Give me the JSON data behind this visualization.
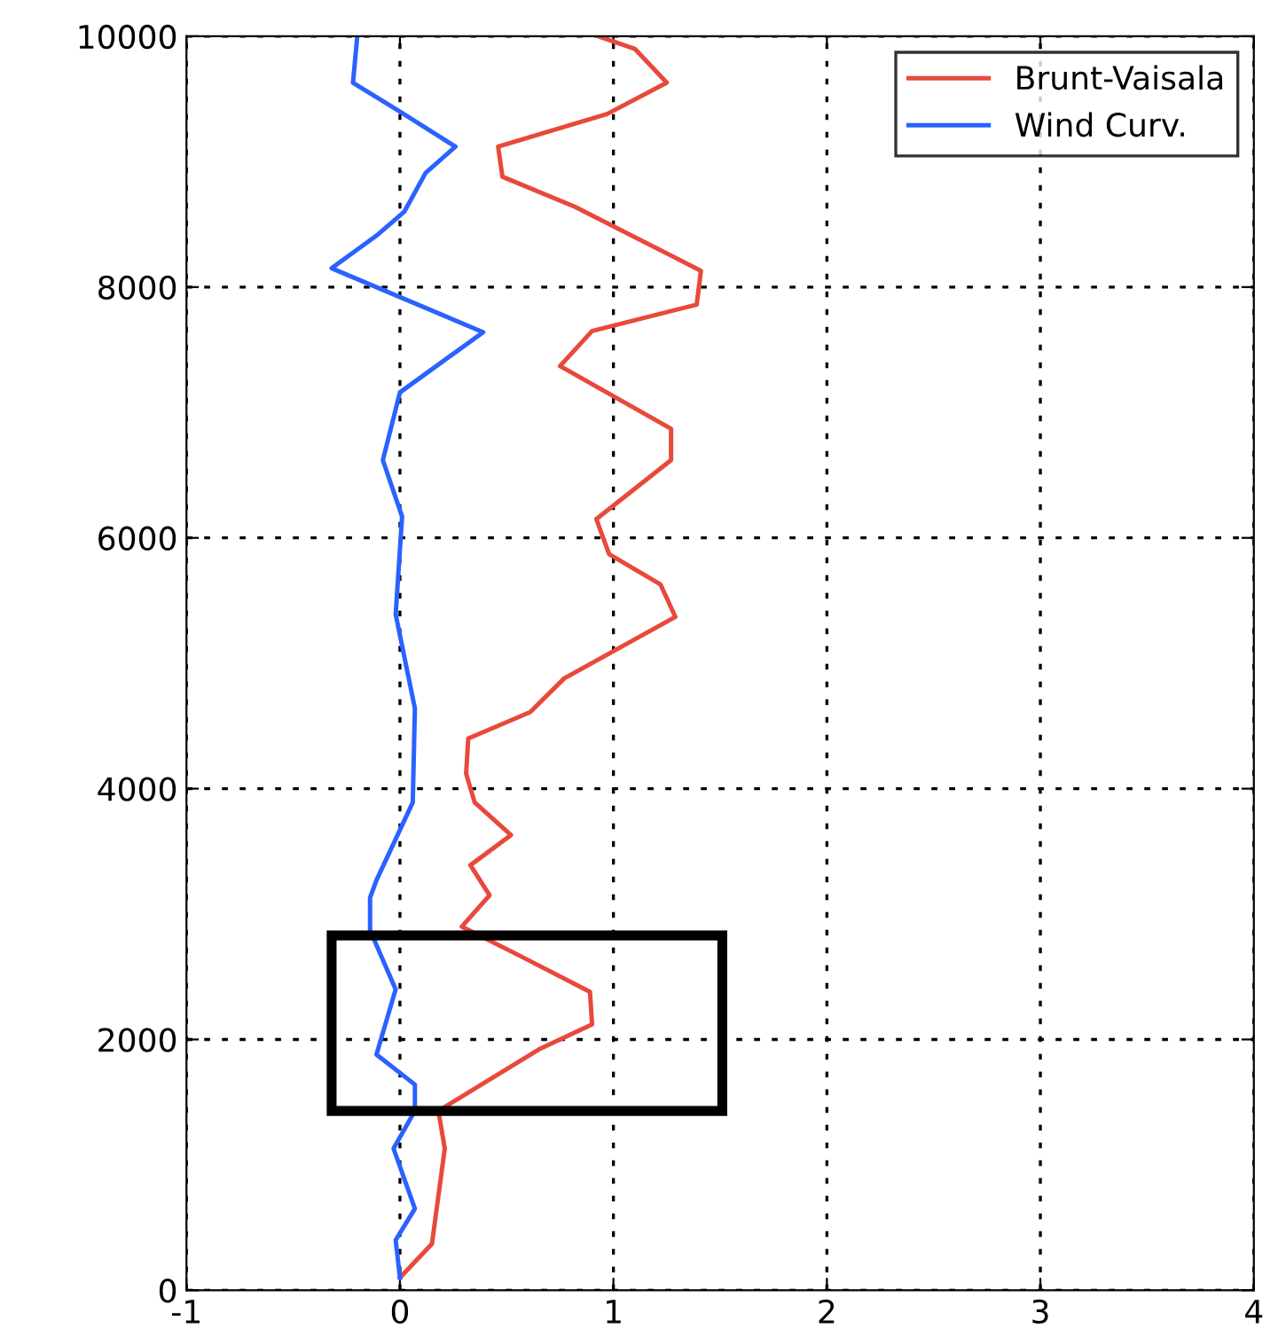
{
  "chart_data": {
    "type": "line",
    "series": [
      {
        "name": "Brunt-Vaisala",
        "color": "#e8493a",
        "x": [
          0.93,
          1.1,
          1.25,
          0.97,
          0.46,
          0.48,
          0.82,
          1.41,
          1.39,
          0.9,
          0.75,
          1.27,
          1.27,
          0.92,
          0.98,
          1.22,
          1.29,
          0.77,
          0.61,
          0.32,
          0.31,
          0.35,
          0.52,
          0.33,
          0.42,
          0.29,
          0.57,
          0.89,
          0.9,
          0.65,
          0.18,
          0.21,
          0.15,
          0.0
        ],
        "values": [
          10000,
          9900,
          9630,
          9380,
          9120,
          8880,
          8640,
          8130,
          7860,
          7650,
          7370,
          6870,
          6620,
          6150,
          5870,
          5630,
          5370,
          4880,
          4610,
          4400,
          4120,
          3890,
          3630,
          3390,
          3150,
          2900,
          2660,
          2380,
          2120,
          1920,
          1430,
          1130,
          370,
          100
        ]
      },
      {
        "name": "Wind Curv.",
        "color": "#2a62ff",
        "x": [
          -0.2,
          -0.22,
          0.0,
          0.26,
          0.12,
          0.02,
          -0.11,
          -0.32,
          0.39,
          0.0,
          -0.08,
          0.01,
          -0.02,
          0.07,
          0.06,
          -0.11,
          -0.14,
          -0.14,
          -0.02,
          -0.11,
          0.07,
          0.07,
          -0.03,
          0.07,
          -0.02,
          0.0
        ],
        "values": [
          10000,
          9630,
          9400,
          9120,
          8910,
          8600,
          8410,
          8150,
          7640,
          7160,
          6620,
          6170,
          5390,
          4640,
          3890,
          3270,
          3130,
          2870,
          2400,
          1880,
          1640,
          1430,
          1130,
          650,
          400,
          100
        ]
      }
    ],
    "xlim": [
      -1,
      4
    ],
    "xticks": [
      -1,
      0,
      1,
      2,
      3,
      4
    ],
    "ylim": [
      0,
      10000
    ],
    "yticks": [
      0,
      2000,
      4000,
      6000,
      8000,
      10000
    ],
    "grid": true,
    "legend": "top right",
    "line_style": "solid",
    "marker": "none"
  }
}
